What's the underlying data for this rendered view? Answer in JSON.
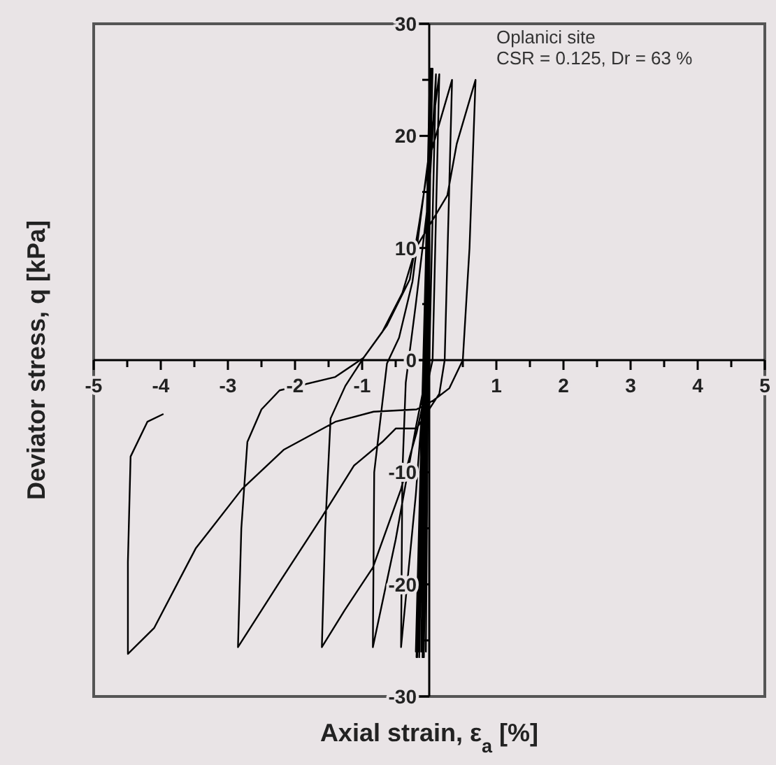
{
  "chart_data": {
    "type": "line",
    "xlabel": "Axial strain, ε$_{a}$ [%]",
    "ylabel": "Deviator stress, q [kPa]",
    "annotations": [
      "Oplanici site",
      "CSR = 0.125, Dr = 63 %"
    ],
    "xlim": [
      -5,
      5
    ],
    "ylim": [
      -30,
      30
    ],
    "xticks": [
      -5,
      {
        "value": -4.5,
        "label": null
      },
      -4,
      {
        "value": -3.5,
        "label": null
      },
      -3,
      {
        "value": -2.5,
        "label": null
      },
      -2,
      {
        "value": -1.5,
        "label": null
      },
      -1,
      {
        "value": -0.5,
        "label": null
      },
      {
        "value": 0,
        "label": null
      },
      {
        "value": 0.5,
        "label": null
      },
      1,
      {
        "value": 1.5,
        "label": null
      },
      2,
      {
        "value": 2.5,
        "label": null
      },
      3,
      {
        "value": 3.5,
        "label": null
      },
      4,
      {
        "value": 4.5,
        "label": null
      },
      5
    ],
    "yticks": [
      -30,
      {
        "value": -25,
        "label": null
      },
      -20,
      {
        "value": -15,
        "label": null
      },
      -10,
      {
        "value": -5,
        "label": null
      },
      0,
      {
        "value": 5,
        "label": null
      },
      10,
      {
        "value": 15,
        "label": null
      },
      20,
      {
        "value": 25,
        "label": null
      },
      30
    ],
    "grid": false,
    "marker": "none",
    "line_style": "solid",
    "series": [
      {
        "color": "#000000",
        "x": [
          0,
          0,
          -0.05,
          0.02,
          -0.08,
          0.03,
          -0.1,
          0.04,
          -0.12,
          0.02,
          -0.15,
          0.03,
          -0.17,
          0.01,
          -0.18,
          0.04,
          -0.2,
          0.02,
          -0.19,
          0.05,
          -0.05,
          -0.2,
          -0.42,
          -0.4,
          -0.35,
          -0.2,
          0,
          0.1,
          0,
          -0.2,
          -0.5,
          -0.84,
          -0.82,
          -0.63,
          -0.45,
          -0.25,
          -0.1,
          0.15,
          0.05,
          -0.19,
          -0.29,
          -0.42,
          -0.84,
          -1.26,
          -1.6,
          -1.55,
          -1.47,
          -1.25,
          -0.98,
          -0.63,
          -0.29,
          -0.15,
          0,
          0.34,
          0.23,
          0.15,
          -0.19,
          -0.5,
          -0.7,
          -1.12,
          -1.6,
          -2.23,
          -2.85,
          -2.8,
          -2.71,
          -2.5,
          -2.23,
          -1.4,
          -0.98,
          -0.7,
          -0.4,
          -0.2,
          0.27,
          0.41,
          0.69,
          0.6,
          0.5,
          0.3,
          0.06,
          -0.19,
          -0.83,
          -1.4,
          -2.17,
          -2.79,
          -3.48,
          -4.1,
          -4.49,
          -4.49,
          -4.45,
          -4.2,
          -3.96
        ],
        "values": [
          0,
          20,
          -26,
          26,
          -26.5,
          25.8,
          -26.5,
          26,
          -26,
          25.5,
          -26.5,
          26,
          -26,
          25.8,
          -26.5,
          26,
          -26,
          25.5,
          -26.5,
          26,
          0,
          -12,
          -25.6,
          -10,
          -2,
          5,
          15,
          25.5,
          0,
          -6,
          -16,
          -25.6,
          -10,
          -0.3,
          2,
          7,
          14,
          25.5,
          0,
          -6.5,
          -8.6,
          -11.5,
          -18.5,
          -22.3,
          -25.6,
          -15,
          -5.2,
          -2.3,
          0.2,
          3.1,
          7.2,
          12.2,
          18,
          25,
          0,
          -3,
          -6.1,
          -6.1,
          -7.3,
          -9.4,
          -14,
          -19.8,
          -25.6,
          -15,
          -7.3,
          -4.4,
          -2.7,
          -1.5,
          0.2,
          2.5,
          6,
          10,
          14.7,
          19.3,
          25,
          10,
          0,
          -2.5,
          -3.6,
          -4.4,
          -4.6,
          -5.5,
          -8,
          -11.5,
          -16.8,
          -23.9,
          -26.2,
          -18,
          -8.6,
          -5.5,
          -4.8
        ]
      }
    ]
  }
}
